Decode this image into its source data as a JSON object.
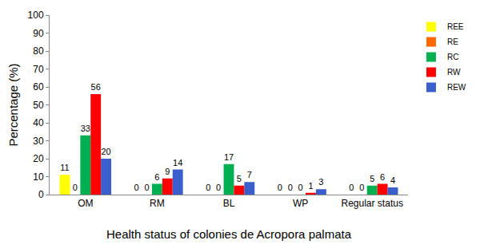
{
  "chart_data": {
    "type": "bar",
    "x_label": "Health status of colonies de Acropora palmata",
    "y_label": "Percentage (%)",
    "categories": [
      "OM",
      "RM",
      "BL",
      "WP",
      "Regular status"
    ],
    "series": [
      {
        "name": "REE",
        "color": "#ffff00",
        "values": [
          11,
          0,
          0,
          0,
          0
        ]
      },
      {
        "name": "RE",
        "color": "#ff6600",
        "values": [
          0,
          0,
          0,
          0,
          0
        ]
      },
      {
        "name": "RC",
        "color": "#00b050",
        "values": [
          33,
          6,
          17,
          0,
          5
        ]
      },
      {
        "name": "RW",
        "color": "#ff0000",
        "values": [
          56,
          9,
          5,
          1,
          6
        ]
      },
      {
        "name": "REW",
        "color": "#3a5fcd",
        "values": [
          20,
          14,
          7,
          3,
          4
        ]
      }
    ],
    "ylim": [
      0,
      100
    ],
    "yticks": [
      0,
      10,
      20,
      30,
      40,
      50,
      60,
      70,
      80,
      90,
      100
    ],
    "grid": false,
    "legend": "top right",
    "data_labels": true
  }
}
